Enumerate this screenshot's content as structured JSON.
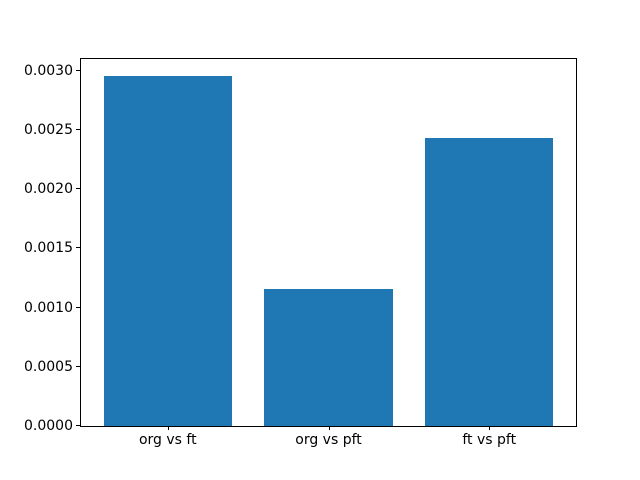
{
  "chart_data": {
    "type": "bar",
    "title": "",
    "xlabel": "",
    "ylabel": "",
    "categories": [
      "org vs ft",
      "org vs pft",
      "ft vs pft"
    ],
    "values": [
      0.00296,
      0.00116,
      0.00243
    ],
    "ylim": [
      0,
      0.0031
    ],
    "yticks": [
      0.0,
      0.0005,
      0.001,
      0.0015,
      0.002,
      0.0025,
      0.003
    ],
    "ytick_labels": [
      "0.0000",
      "0.0005",
      "0.0010",
      "0.0015",
      "0.0020",
      "0.0025",
      "0.0030"
    ],
    "bar_width_fraction": 0.8,
    "grid": false,
    "legend": null,
    "bar_color": "#1f77b4",
    "background_color": "#ffffff",
    "axis_color": "#000000"
  }
}
